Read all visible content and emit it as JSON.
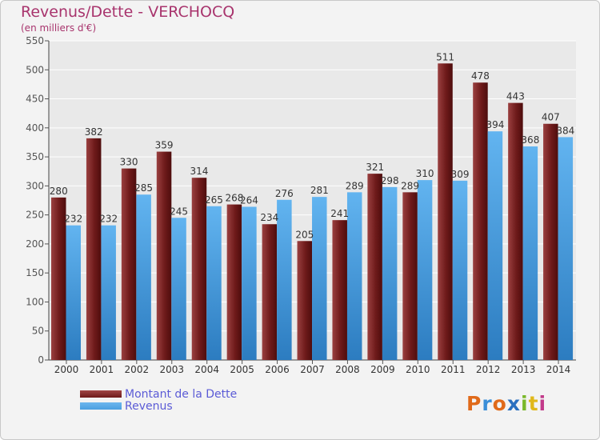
{
  "header": {
    "title": "Revenus/Dette - VERCHOCQ",
    "subtitle": "(en milliers d'€)"
  },
  "colors": {
    "title": "#a8346d",
    "dette": "#6e1a1a",
    "revenus": "#4a9fe0",
    "legend_text": "#5b5bd6",
    "grid": "#ffffff",
    "plot_bg": "#e9e9e9"
  },
  "legend": {
    "dette_label": "Montant de la Dette",
    "revenus_label": "Revenus"
  },
  "logo": {
    "letters": [
      "P",
      "r",
      "o",
      "x",
      "i",
      "t",
      "i"
    ],
    "colors": [
      "#e06a1a",
      "#3a8ed8",
      "#e06a1a",
      "#2a6fbf",
      "#7ab82a",
      "#e0b81a",
      "#c23a8a"
    ]
  },
  "chart_data": {
    "type": "bar",
    "title": "Revenus/Dette - VERCHOCQ",
    "ylabel": "(en milliers d'€)",
    "xlabel": "",
    "ylim": [
      0,
      550
    ],
    "yticks": [
      0,
      50,
      100,
      150,
      200,
      250,
      300,
      350,
      400,
      450,
      500,
      550
    ],
    "grid": true,
    "categories": [
      "2000",
      "2001",
      "2002",
      "2003",
      "2004",
      "2005",
      "2006",
      "2007",
      "2008",
      "2009",
      "2010",
      "2011",
      "2012",
      "2013",
      "2014"
    ],
    "series": [
      {
        "name": "Montant de la Dette",
        "values": [
          280,
          382,
          330,
          359,
          314,
          268,
          234,
          205,
          241,
          321,
          289,
          511,
          478,
          443,
          407
        ]
      },
      {
        "name": "Revenus",
        "values": [
          232,
          232,
          285,
          245,
          265,
          264,
          276,
          281,
          289,
          298,
          310,
          309,
          394,
          368,
          384
        ]
      }
    ]
  }
}
